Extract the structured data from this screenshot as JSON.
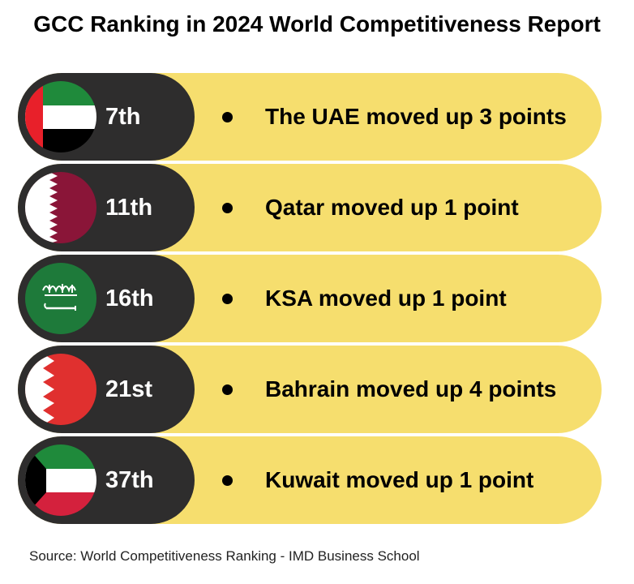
{
  "title": "GCC Ranking in 2024 World Competitiveness Report",
  "rows": [
    {
      "flag_icon": "uae-flag-icon",
      "rank": "7th",
      "text": "The UAE moved up 3 points"
    },
    {
      "flag_icon": "qatar-flag-icon",
      "rank": "11th",
      "text": "Qatar moved up 1 point"
    },
    {
      "flag_icon": "saudi-arabia-flag-icon",
      "rank": "16th",
      "text": "KSA moved up 1 point"
    },
    {
      "flag_icon": "bahrain-flag-icon",
      "rank": "21st",
      "text": "Bahrain moved up 4 points"
    },
    {
      "flag_icon": "kuwait-flag-icon",
      "rank": "37th",
      "text": "Kuwait moved up 1 point"
    }
  ],
  "source": "Source: World Competitiveness Ranking - IMD Business School",
  "colors": {
    "pill_yellow": "#f6de6e",
    "pill_dark": "#2e2d2d",
    "text": "#000000",
    "rank_text": "#ffffff"
  }
}
